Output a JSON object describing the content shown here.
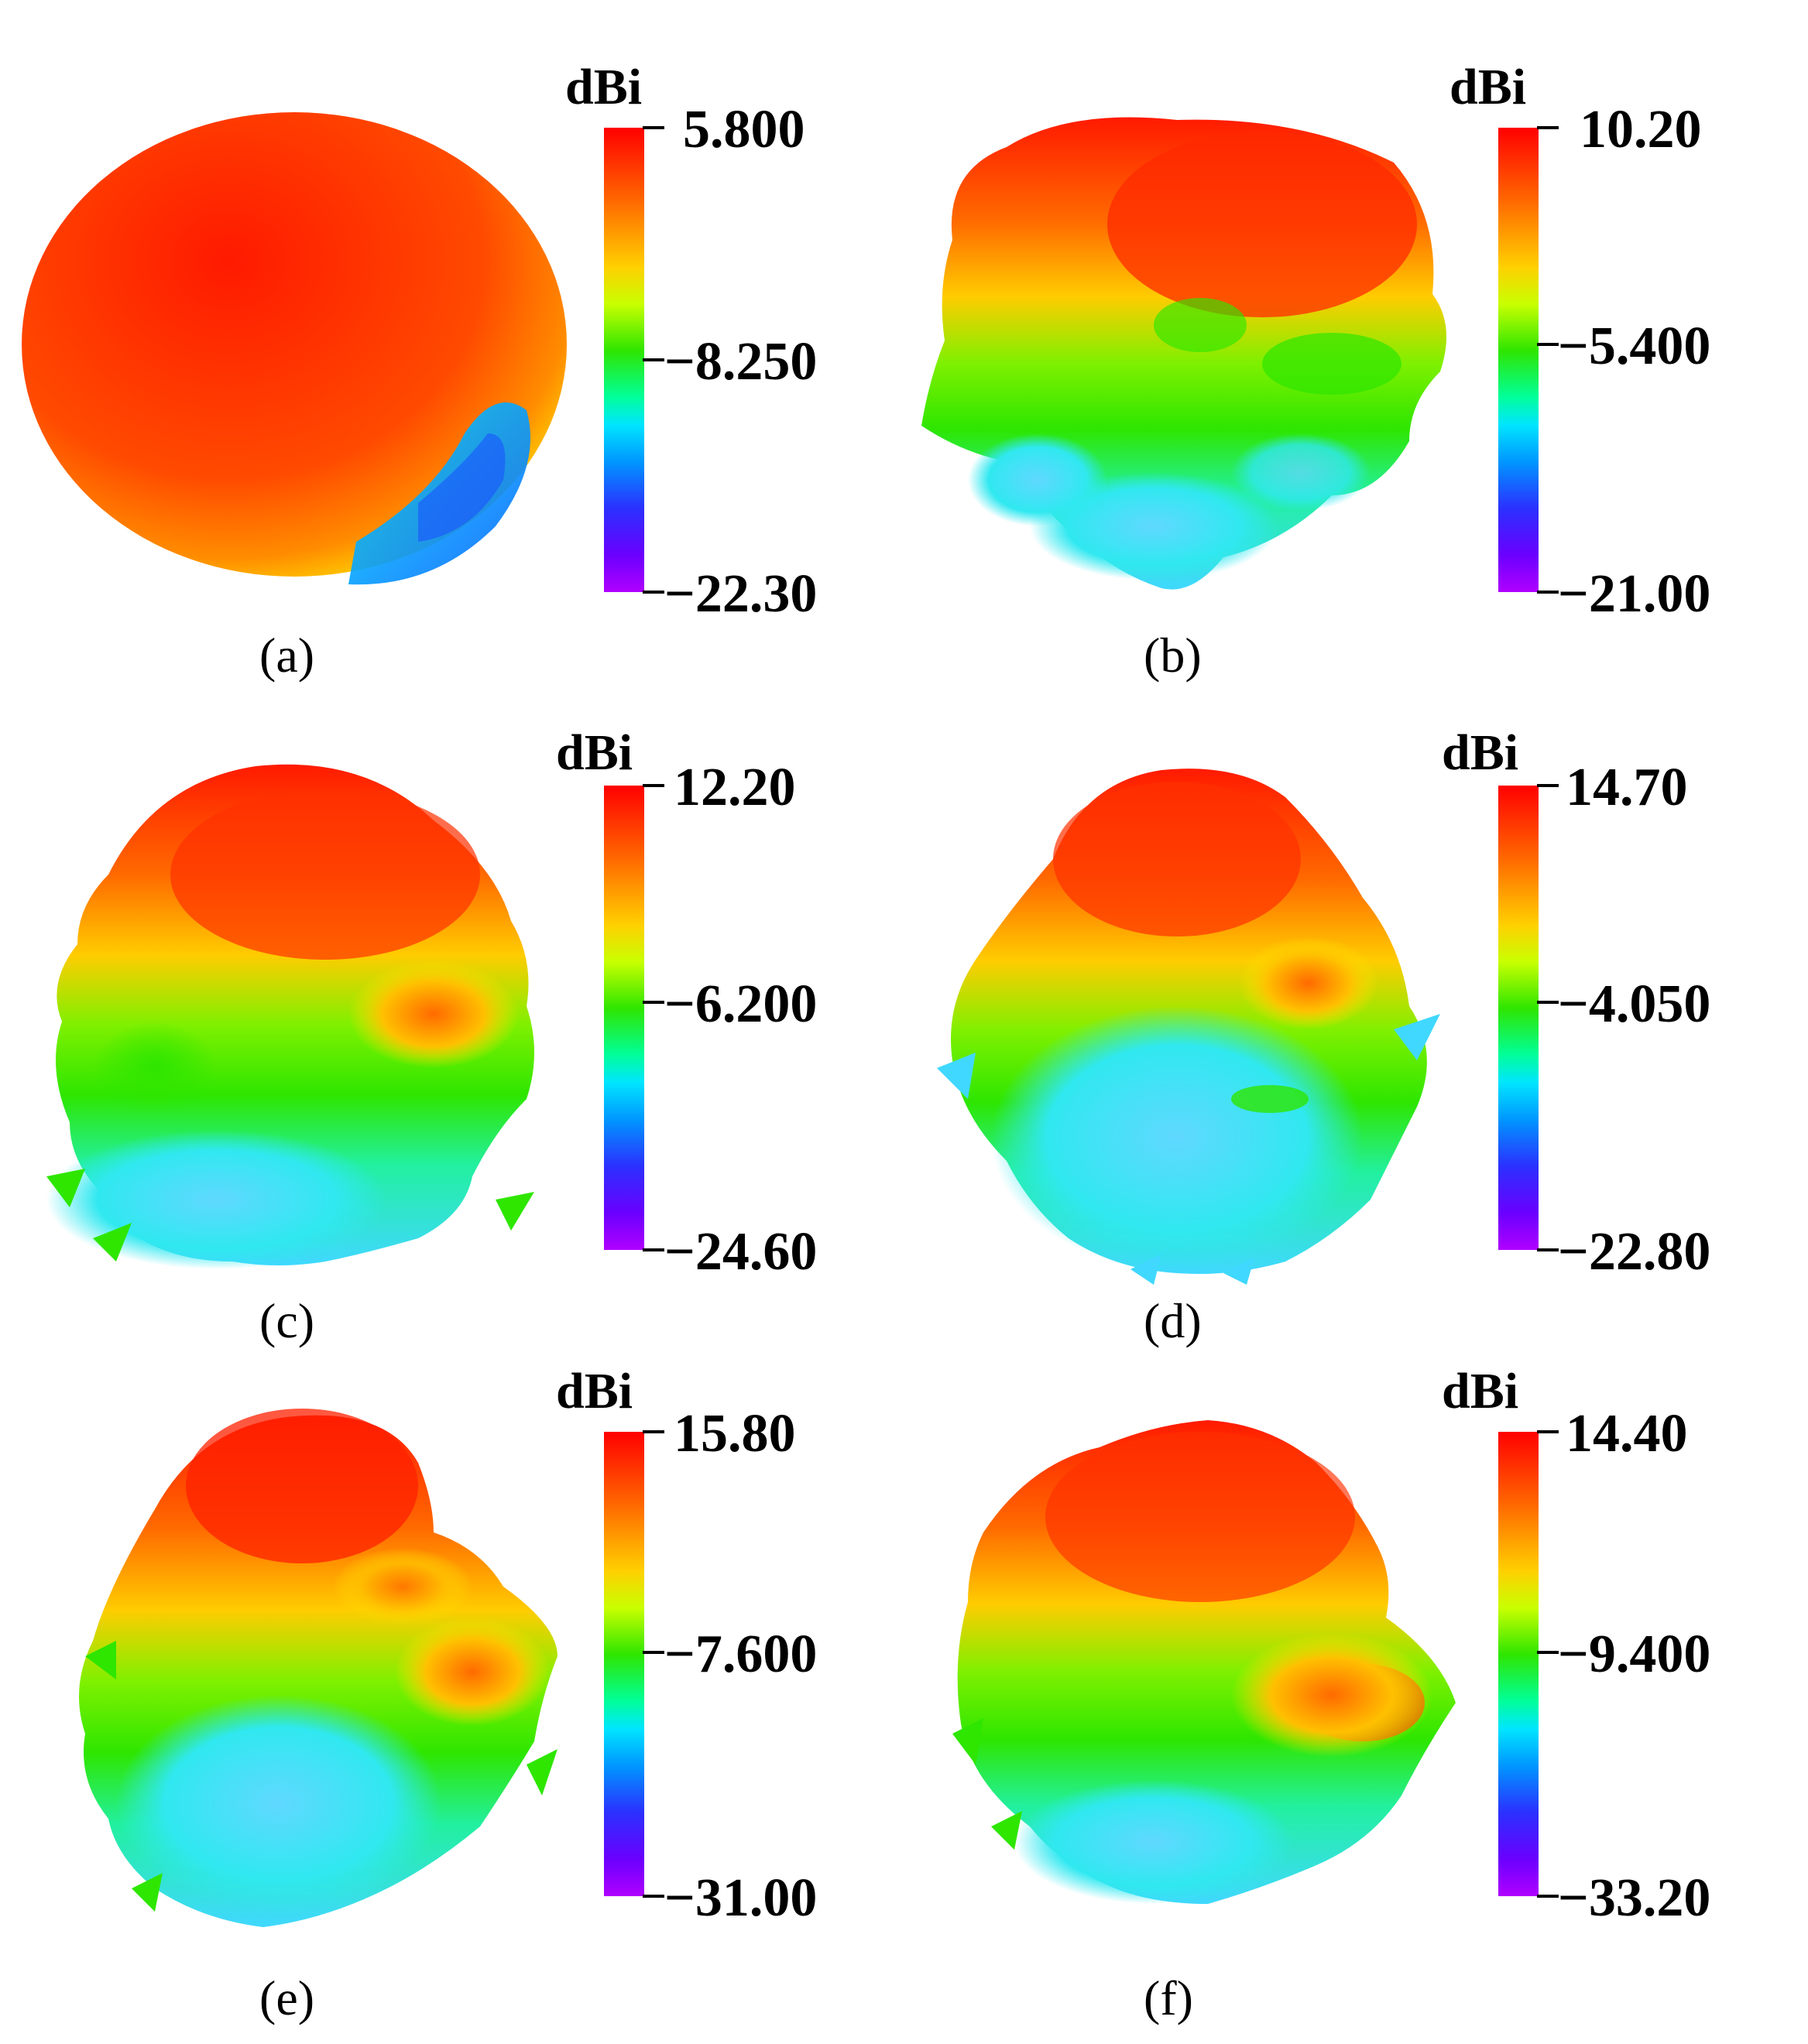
{
  "panels": [
    {
      "caption": "(a)",
      "unit": "dBi",
      "max": "5.800",
      "mid": "−8.250",
      "min": "−22.30"
    },
    {
      "caption": "(b)",
      "unit": "dBi",
      "max": "10.20",
      "mid": "−5.400",
      "min": "−21.00"
    },
    {
      "caption": "(c)",
      "unit": "dBi",
      "max": "12.20",
      "mid": "−6.200",
      "min": "−24.60"
    },
    {
      "caption": "(d)",
      "unit": "dBi",
      "max": "14.70",
      "mid": "−4.050",
      "min": "−22.80"
    },
    {
      "caption": "(e)",
      "unit": "dBi",
      "max": "15.80",
      "mid": "−7.600",
      "min": "−31.00"
    },
    {
      "caption": "(f)",
      "unit": "dBi",
      "max": "14.40",
      "mid": "−9.400",
      "min": "−33.20"
    }
  ],
  "colormap": [
    "#ff0000",
    "#ff6a00",
    "#ffd000",
    "#2ee600",
    "#00e5ff",
    "#2b30ff",
    "#b000ff"
  ]
}
